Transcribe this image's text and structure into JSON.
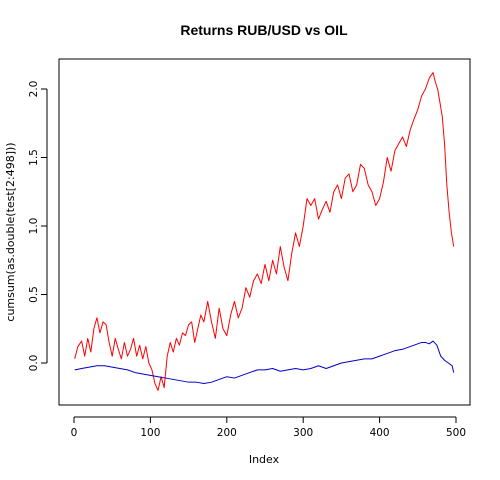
{
  "chart_data": {
    "type": "line",
    "title": "Returns RUB/USD vs OIL",
    "xlabel": "Index",
    "ylabel": "cumsum(as.double(test[2:498]))",
    "xlim": [
      0,
      500
    ],
    "ylim": [
      -0.3,
      2.2
    ],
    "x_ticks": [
      "0",
      "100",
      "200",
      "300",
      "400",
      "500"
    ],
    "y_ticks": [
      "0.0",
      "0.5",
      "1.0",
      "1.5",
      "2.0"
    ],
    "grid": false,
    "legend": "none",
    "series": [
      {
        "color": "#ff0000",
        "x": [
          1,
          5,
          10,
          14,
          18,
          22,
          26,
          30,
          34,
          38,
          42,
          46,
          50,
          54,
          58,
          62,
          66,
          70,
          74,
          78,
          82,
          86,
          90,
          94,
          98,
          102,
          106,
          110,
          114,
          118,
          122,
          126,
          130,
          134,
          138,
          142,
          146,
          150,
          154,
          158,
          162,
          166,
          170,
          175,
          180,
          185,
          190,
          195,
          200,
          205,
          210,
          215,
          220,
          225,
          230,
          235,
          240,
          245,
          250,
          255,
          260,
          265,
          270,
          275,
          280,
          285,
          290,
          295,
          300,
          305,
          310,
          315,
          320,
          325,
          330,
          335,
          340,
          345,
          350,
          355,
          360,
          365,
          370,
          375,
          380,
          385,
          390,
          395,
          400,
          405,
          410,
          415,
          420,
          425,
          430,
          435,
          440,
          445,
          450,
          455,
          460,
          465,
          470,
          473,
          476,
          479,
          482,
          485,
          488,
          491,
          494,
          497
        ],
        "values": [
          0.03,
          0.12,
          0.16,
          0.05,
          0.18,
          0.08,
          0.25,
          0.33,
          0.22,
          0.3,
          0.28,
          0.15,
          0.05,
          0.18,
          0.1,
          0.03,
          0.15,
          0.05,
          0.1,
          0.18,
          0.05,
          0.13,
          0.03,
          0.12,
          0.0,
          -0.05,
          -0.15,
          -0.2,
          -0.1,
          -0.18,
          0.05,
          0.15,
          0.08,
          0.18,
          0.13,
          0.22,
          0.2,
          0.28,
          0.3,
          0.15,
          0.25,
          0.35,
          0.3,
          0.45,
          0.3,
          0.18,
          0.4,
          0.25,
          0.2,
          0.35,
          0.45,
          0.33,
          0.4,
          0.55,
          0.48,
          0.6,
          0.65,
          0.58,
          0.72,
          0.6,
          0.75,
          0.65,
          0.85,
          0.7,
          0.6,
          0.8,
          0.95,
          0.85,
          1.0,
          1.2,
          1.15,
          1.2,
          1.05,
          1.12,
          1.18,
          1.1,
          1.25,
          1.3,
          1.2,
          1.35,
          1.38,
          1.25,
          1.3,
          1.45,
          1.42,
          1.3,
          1.25,
          1.15,
          1.2,
          1.32,
          1.5,
          1.4,
          1.55,
          1.6,
          1.65,
          1.58,
          1.7,
          1.78,
          1.85,
          1.95,
          2.0,
          2.08,
          2.12,
          2.05,
          2.0,
          1.9,
          1.8,
          1.6,
          1.3,
          1.1,
          0.95,
          0.85
        ]
      },
      {
        "color": "#0000cc",
        "x": [
          1,
          10,
          20,
          30,
          40,
          50,
          60,
          70,
          80,
          90,
          100,
          110,
          120,
          130,
          140,
          150,
          160,
          170,
          180,
          190,
          200,
          210,
          220,
          230,
          240,
          250,
          260,
          270,
          280,
          290,
          300,
          310,
          320,
          330,
          340,
          350,
          360,
          370,
          380,
          390,
          400,
          410,
          420,
          430,
          440,
          450,
          455,
          460,
          465,
          470,
          475,
          480,
          485,
          490,
          495,
          497
        ],
        "values": [
          -0.05,
          -0.04,
          -0.03,
          -0.02,
          -0.02,
          -0.03,
          -0.04,
          -0.05,
          -0.07,
          -0.08,
          -0.09,
          -0.1,
          -0.11,
          -0.12,
          -0.13,
          -0.14,
          -0.14,
          -0.15,
          -0.14,
          -0.12,
          -0.1,
          -0.11,
          -0.09,
          -0.07,
          -0.05,
          -0.05,
          -0.04,
          -0.06,
          -0.05,
          -0.04,
          -0.05,
          -0.04,
          -0.02,
          -0.04,
          -0.02,
          0.0,
          0.01,
          0.02,
          0.03,
          0.03,
          0.05,
          0.07,
          0.09,
          0.1,
          0.12,
          0.14,
          0.15,
          0.15,
          0.14,
          0.16,
          0.13,
          0.05,
          0.02,
          0.0,
          -0.02,
          -0.07
        ]
      }
    ]
  }
}
